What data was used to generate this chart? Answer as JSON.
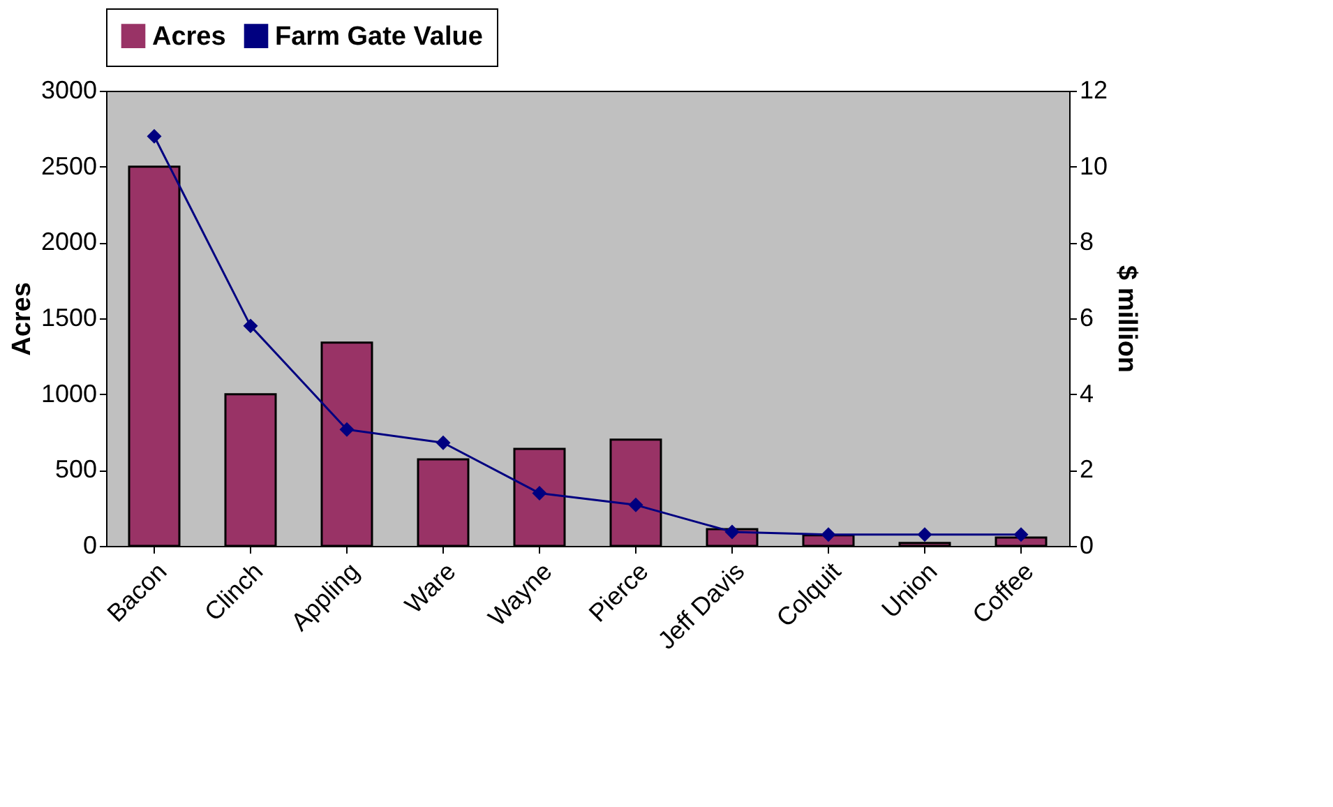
{
  "chart_data": {
    "type": "bar",
    "categories": [
      "Bacon",
      "Clinch",
      "Appling",
      "Ware",
      "Wayne",
      "Pierce",
      "Jeff Davis",
      "Colquit",
      "Union",
      "Coffee"
    ],
    "series": [
      {
        "name": "Acres",
        "color": "#993366",
        "values": [
          2500,
          1000,
          1340,
          570,
          640,
          700,
          110,
          70,
          20,
          55
        ]
      },
      {
        "name": "Farm Gate Value",
        "type": "line",
        "axis": "y2",
        "color": "#000080",
        "marker": "diamond",
        "line_style": "solid",
        "values": [
          10.8,
          5.8,
          3.07,
          2.72,
          1.39,
          1.08,
          0.37,
          0.3,
          0.3,
          0.3
        ]
      }
    ],
    "ylabel": "Acres",
    "y2label": "$ million",
    "ylim": [
      0,
      3000
    ],
    "yticks": [
      0,
      500,
      1000,
      1500,
      2000,
      2500,
      3000
    ],
    "y2lim": [
      0,
      12
    ],
    "y2ticks": [
      0,
      2,
      4,
      6,
      8,
      10,
      12
    ],
    "legend": "top",
    "grid": false
  }
}
